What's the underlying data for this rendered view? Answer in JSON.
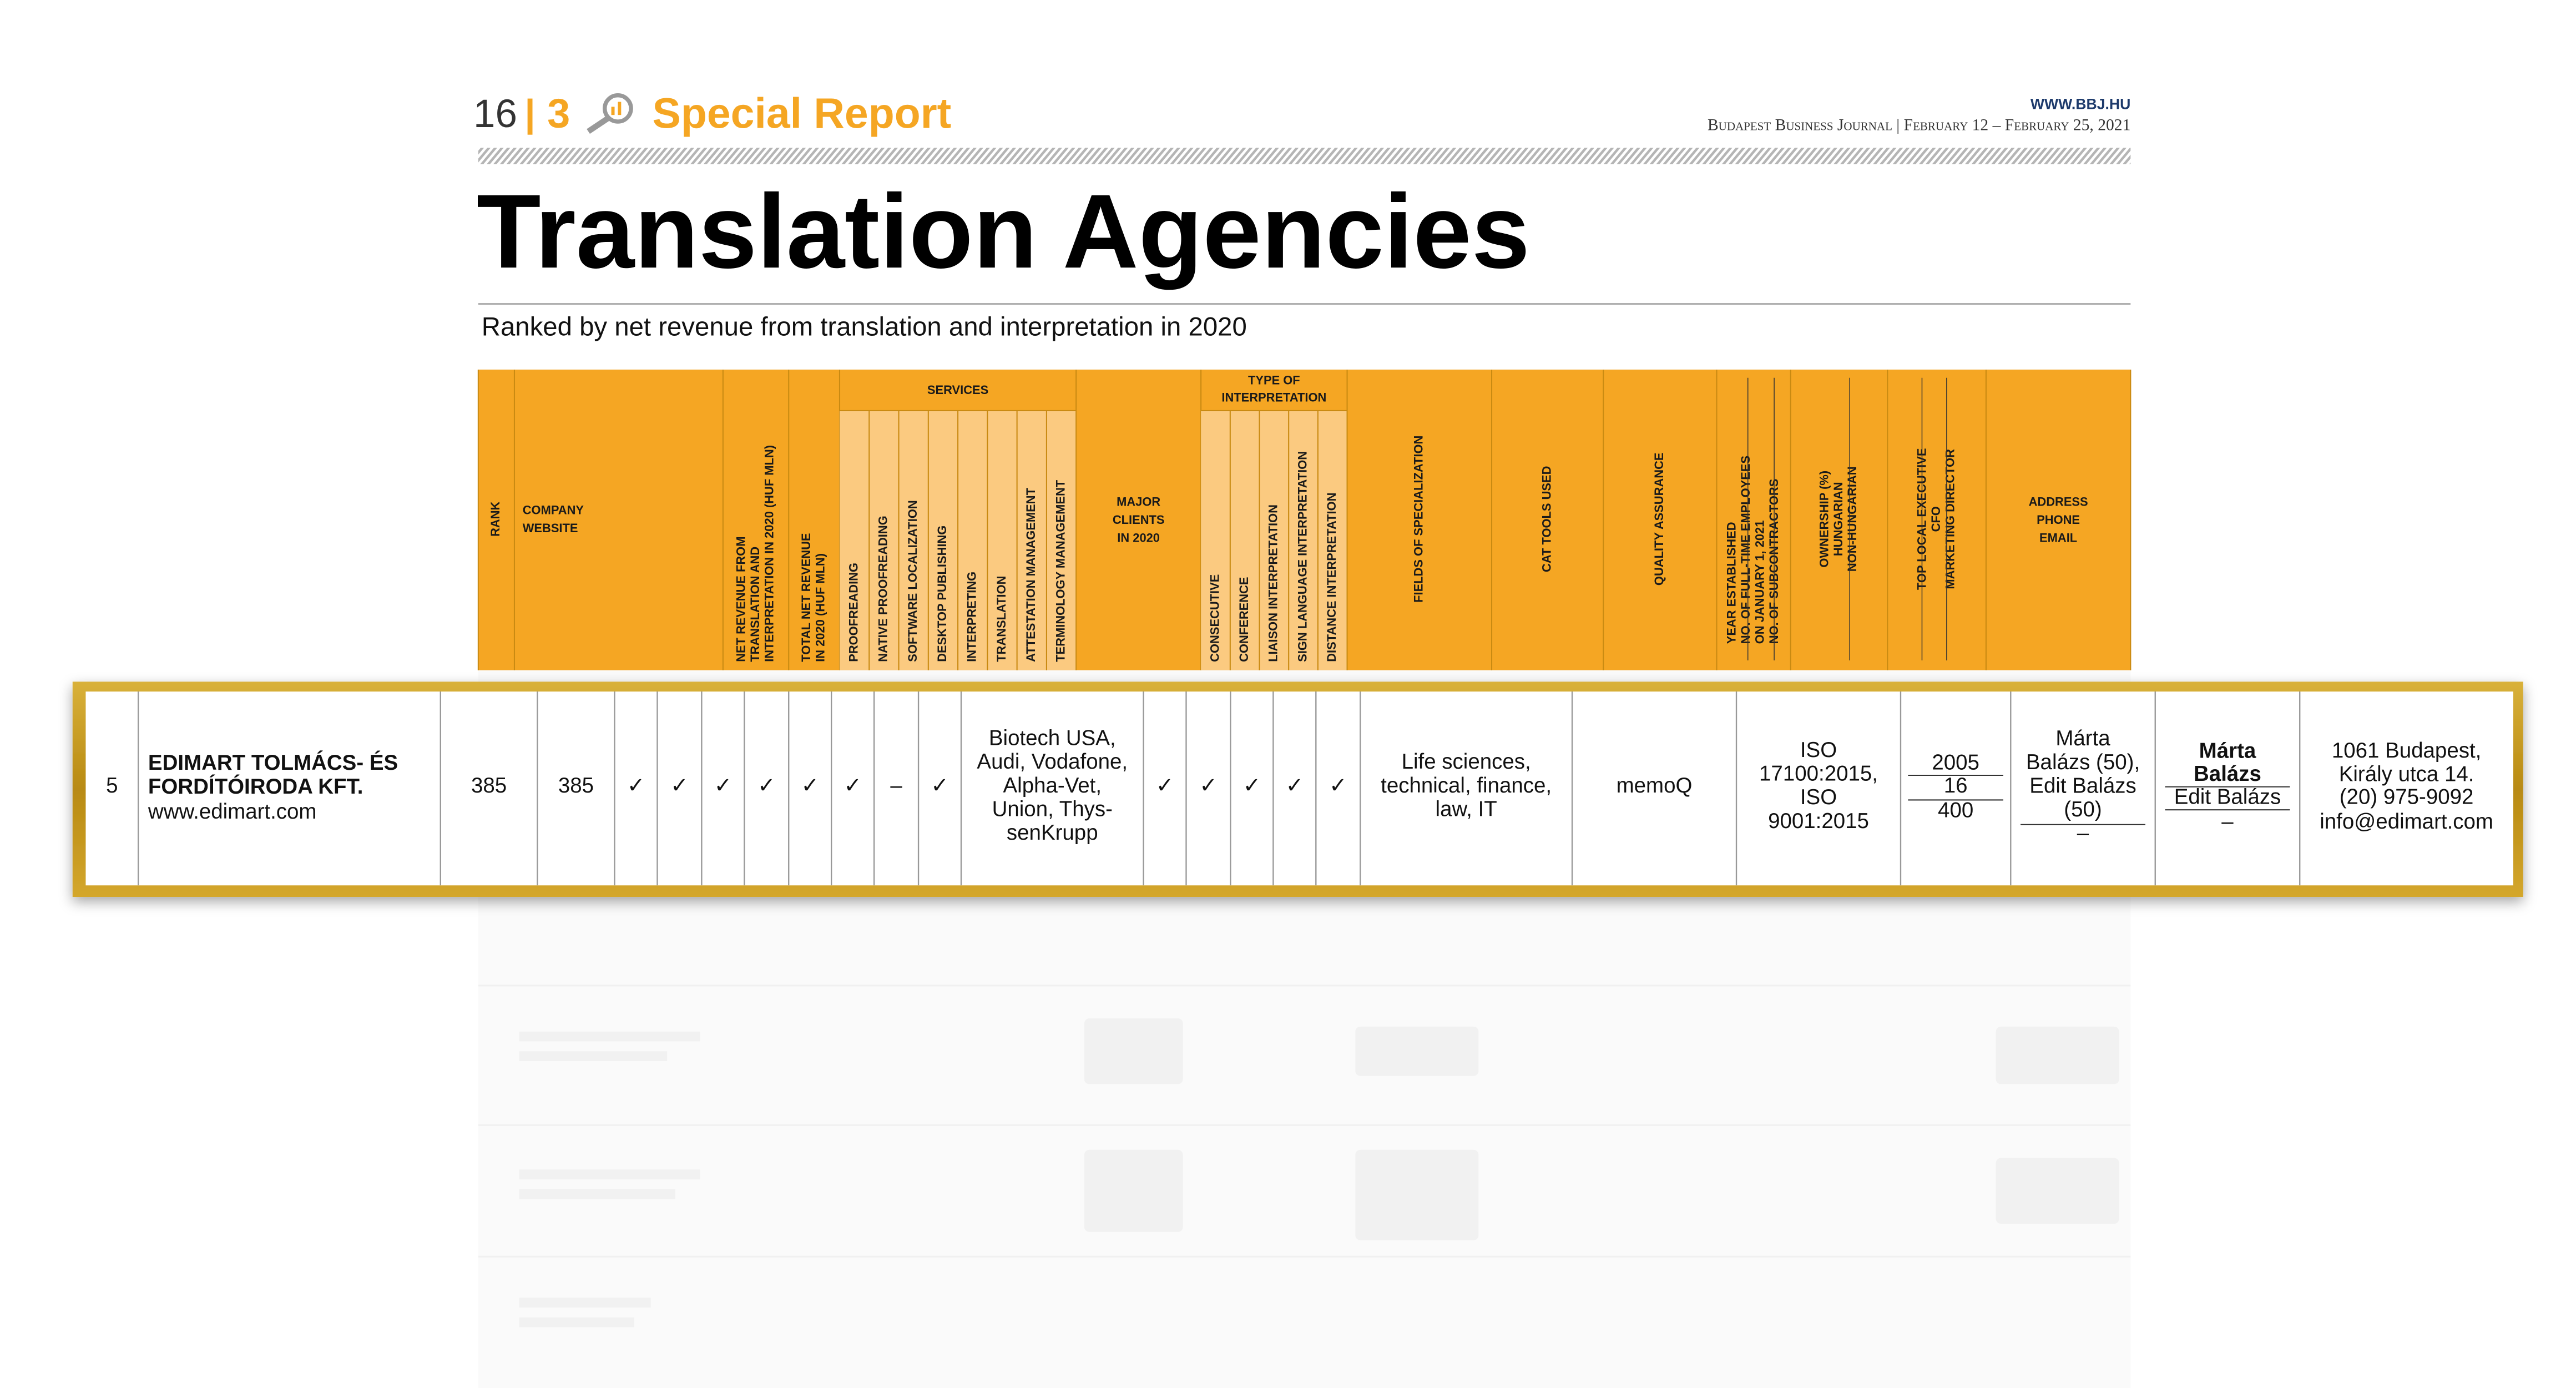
{
  "header": {
    "page_number": "16",
    "section_number": "3",
    "section_title": "Special Report",
    "website": "WWW.BBJ.HU",
    "publication": "Budapest Business Journal | February 12 – February 25, 2021"
  },
  "title": "Translation Agencies",
  "subtitle": "Ranked by net revenue from translation and interpretation in 2020",
  "table": {
    "columns": [
      {
        "label": [
          "RANK"
        ]
      },
      {
        "label": [
          "COMPANY",
          "WEBSITE"
        ]
      },
      {
        "label": [
          "NET REVENUE FROM",
          "TRANSLATION AND",
          "INTERPRETATION IN 2020 (HUF MLN)"
        ]
      },
      {
        "label": [
          "TOTAL NET REVENUE",
          "IN 2020 (HUF MLN)"
        ]
      },
      {
        "group": [
          "SERVICES"
        ],
        "subcolumns": [
          "PROOFREADING",
          "NATIVE PROOFREADING",
          "SOFTWARE LOCALIZATION",
          "DESKTOP PUBLISHING",
          "INTERPRETING",
          "TRANSLATION",
          "ATTESTATION MANAGEMENT",
          "TERMINOLOGY MANAGEMENT"
        ]
      },
      {
        "label": [
          "MAJOR",
          "CLIENTS",
          "IN 2020"
        ]
      },
      {
        "group": [
          "TYPE OF",
          "INTERPRETATION"
        ],
        "subcolumns": [
          "CONSECUTIVE",
          "CONFERENCE",
          "LIAISON INTERPRETATION",
          "SIGN LANGUAGE INTERPRETATION",
          "DISTANCE INTERPRETATION"
        ]
      },
      {
        "label": [
          "FIELDS OF SPECIALIZATION"
        ]
      },
      {
        "label": [
          "CAT TOOLS USED"
        ]
      },
      {
        "label": [
          "QUALITY ASSURANCE"
        ]
      },
      {
        "label": [
          "YEAR ESTABLISHED",
          "NO. OF FULL-TIME EMPLOYEES",
          "ON JANUARY 1, 2021",
          "NO. OF SUBCONTRACTORS"
        ]
      },
      {
        "label": [
          "OWNERSHIP (%)",
          "HUNGARIAN",
          "NON-HUNGARIAN"
        ]
      },
      {
        "label": [
          "TOP LOCAL EXECUTIVE",
          "CFO",
          "MARKETING DIRECTOR"
        ]
      },
      {
        "label": [
          "ADDRESS",
          "PHONE",
          "EMAIL"
        ]
      }
    ],
    "row": {
      "rank": 5,
      "company": [
        "EDIMART TOLMÁCS- ÉS",
        "FORDÍTÓIRODA KFT."
      ],
      "website": "www.edimart.com",
      "net_revenue": 385,
      "total_revenue": 385,
      "services": [
        "✓",
        "✓",
        "✓",
        "✓",
        "✓",
        "✓",
        "–",
        "✓"
      ],
      "major_clients": [
        "Biotech USA,",
        "Audi, Vodafone,",
        "Alpha-Vet,",
        "Union, Thys-",
        "senKrupp"
      ],
      "interpretation": [
        "✓",
        "✓",
        "✓",
        "✓",
        "✓"
      ],
      "fields": [
        "Life sciences,",
        "technical, finance,",
        "law, IT"
      ],
      "cat_tools": "memoQ",
      "quality_assurance": [
        "ISO",
        "17100:2015,",
        "ISO",
        "9001:2015"
      ],
      "year_established": 2005,
      "employees": 16,
      "subcontractors": 400,
      "ownership_hungarian": [
        "Márta",
        "Balázs (50),",
        "Edit Balázs",
        "(50)"
      ],
      "ownership_non_hungarian": "–",
      "top_executive": [
        "Márta",
        "Balázs"
      ],
      "cfo": "Edit Balázs",
      "marketing_director": "–",
      "address": [
        "1061 Budapest,",
        "Király utca 14."
      ],
      "phone": "(20) 975-9092",
      "email": "info@edimart.com"
    }
  }
}
